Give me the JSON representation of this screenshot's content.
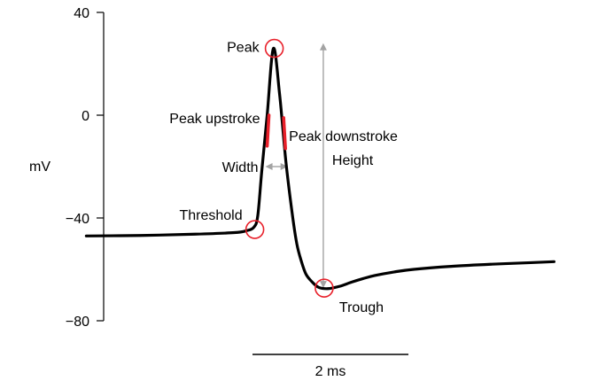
{
  "chart_data": {
    "type": "line",
    "title": "",
    "xlabel": "",
    "ylabel": "mV",
    "ylim": [
      -80,
      40
    ],
    "yticks": [
      {
        "value": 40,
        "label": "40"
      },
      {
        "value": 0,
        "label": "0"
      },
      {
        "value": -40,
        "label": "−40"
      },
      {
        "value": -80,
        "label": "−80"
      }
    ],
    "scale_bar": {
      "label": "2 ms",
      "duration_ms": 2
    },
    "xlim_ms": [
      -2.2,
      3.8
    ],
    "series": [
      {
        "color": "#000000",
        "x_ms": [
          -2.2,
          -1.5,
          -0.8,
          -0.3,
          -0.15,
          -0.05,
          0.0,
          0.05,
          0.12,
          0.2,
          0.28,
          0.36,
          0.44,
          0.5,
          0.56,
          0.62,
          0.7,
          0.78,
          0.9,
          1.05,
          1.2,
          1.35,
          1.5,
          1.75,
          2.0,
          2.5,
          3.0,
          3.5,
          3.8
        ],
        "values": [
          -47.0,
          -46.8,
          -46.3,
          -45.7,
          -45.0,
          -43.6,
          -39.0,
          -22.0,
          0.0,
          26.0,
          8.0,
          -18.0,
          -38.0,
          -50.0,
          -57.0,
          -62.0,
          -65.0,
          -67.0,
          -67.5,
          -66.6,
          -65.0,
          -63.6,
          -62.4,
          -61.0,
          -60.0,
          -58.8,
          -58.0,
          -57.4,
          -57.0
        ]
      }
    ],
    "annotations": [
      {
        "label": "Peak",
        "x_ms": 0.2,
        "y": 26
      },
      {
        "label": "Threshold",
        "x_ms": -0.05,
        "y": -44.5
      },
      {
        "label": "Trough",
        "x_ms": 0.84,
        "y": -67.3
      },
      {
        "label": "Peak upstroke",
        "x_ms": 0.12,
        "y_range": [
          -12,
          0
        ]
      },
      {
        "label": "Peak downstroke",
        "x_ms": 0.32,
        "y_range": [
          -13,
          -1
        ]
      },
      {
        "label": "Width",
        "x_ms_range": [
          0.12,
          0.36
        ],
        "y": -20
      },
      {
        "label": "Height",
        "x_ms": 0.84,
        "y_range": [
          -67.3,
          28
        ]
      }
    ],
    "colors": {
      "trace": "#000000",
      "marker": "#e8202a",
      "measure_arrow": "#a3a3a3"
    },
    "grid": false
  }
}
